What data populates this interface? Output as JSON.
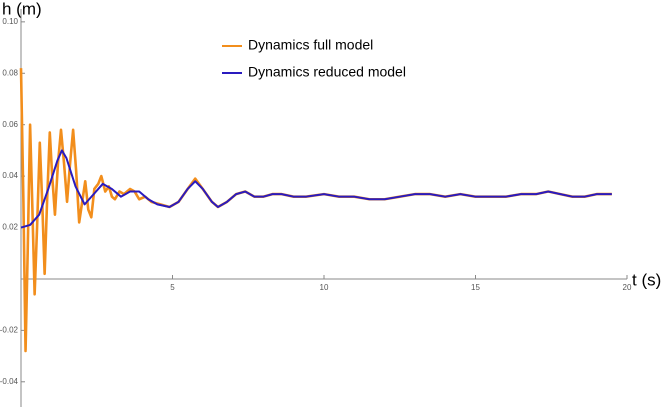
{
  "chart_data": {
    "type": "line",
    "x_label": "t (s)",
    "y_label": "h (m)",
    "xlim": [
      0,
      20
    ],
    "ylim": [
      -0.05,
      0.105
    ],
    "xticks": [
      5,
      10,
      15,
      20
    ],
    "yticks": [
      {
        "value": 0.1,
        "label": "0.10"
      },
      0.08,
      0.06,
      0.04,
      0.02,
      -0.02,
      -0.04
    ],
    "series": [
      {
        "name": "Dynamics full model",
        "color": "#f28e1c",
        "x": [
          0,
          0.08,
          0.15,
          0.22,
          0.3,
          0.37,
          0.45,
          0.53,
          0.62,
          0.7,
          0.78,
          0.86,
          0.95,
          1.03,
          1.12,
          1.22,
          1.32,
          1.42,
          1.52,
          1.62,
          1.72,
          1.82,
          1.92,
          2.02,
          2.12,
          2.22,
          2.32,
          2.42,
          2.55,
          2.65,
          2.78,
          2.9,
          3.0,
          3.1,
          3.25,
          3.4,
          3.6,
          3.75,
          3.9,
          4.1,
          4.3,
          4.6,
          4.9,
          5.2,
          5.5,
          5.75,
          6.0,
          6.3,
          6.5,
          6.8,
          7.1,
          7.4,
          7.7,
          8.0,
          8.3,
          8.6,
          9.0,
          9.4,
          10.0,
          10.5,
          11.0,
          11.5,
          12.0,
          12.5,
          13.0,
          13.5,
          14.0,
          14.5,
          15.0,
          15.5,
          16.0,
          16.5,
          17.0,
          17.4,
          17.8,
          18.2,
          18.6,
          19.0,
          19.5
        ],
        "values": [
          0.082,
          0.03,
          -0.028,
          0.01,
          0.06,
          0.03,
          -0.006,
          0.02,
          0.053,
          0.03,
          0.002,
          0.03,
          0.057,
          0.04,
          0.025,
          0.045,
          0.058,
          0.045,
          0.03,
          0.045,
          0.058,
          0.042,
          0.022,
          0.03,
          0.038,
          0.027,
          0.024,
          0.035,
          0.037,
          0.04,
          0.034,
          0.036,
          0.032,
          0.031,
          0.034,
          0.033,
          0.035,
          0.034,
          0.031,
          0.032,
          0.03,
          0.029,
          0.028,
          0.03,
          0.035,
          0.039,
          0.035,
          0.03,
          0.028,
          0.03,
          0.033,
          0.034,
          0.032,
          0.032,
          0.033,
          0.033,
          0.032,
          0.032,
          0.033,
          0.032,
          0.032,
          0.031,
          0.031,
          0.032,
          0.033,
          0.033,
          0.032,
          0.033,
          0.032,
          0.032,
          0.032,
          0.033,
          0.033,
          0.034,
          0.033,
          0.032,
          0.032,
          0.033,
          0.033
        ]
      },
      {
        "name": "Dynamics reduced model",
        "color": "#2a1bbf",
        "x": [
          0,
          0.3,
          0.6,
          0.9,
          1.2,
          1.35,
          1.5,
          1.8,
          2.1,
          2.4,
          2.7,
          3.0,
          3.3,
          3.6,
          3.9,
          4.2,
          4.5,
          4.9,
          5.2,
          5.5,
          5.75,
          6.0,
          6.3,
          6.5,
          6.8,
          7.1,
          7.4,
          7.7,
          8.0,
          8.3,
          8.6,
          9.0,
          9.4,
          10.0,
          10.5,
          11.0,
          11.5,
          12.0,
          12.5,
          13.0,
          13.5,
          14.0,
          14.5,
          15.0,
          15.5,
          16.0,
          16.5,
          17.0,
          17.4,
          17.8,
          18.2,
          18.6,
          19.0,
          19.5
        ],
        "values": [
          0.02,
          0.021,
          0.025,
          0.035,
          0.046,
          0.05,
          0.047,
          0.036,
          0.029,
          0.033,
          0.037,
          0.035,
          0.032,
          0.034,
          0.034,
          0.031,
          0.029,
          0.028,
          0.03,
          0.035,
          0.038,
          0.035,
          0.03,
          0.028,
          0.03,
          0.033,
          0.034,
          0.032,
          0.032,
          0.033,
          0.033,
          0.032,
          0.032,
          0.033,
          0.032,
          0.032,
          0.031,
          0.031,
          0.032,
          0.033,
          0.033,
          0.032,
          0.033,
          0.032,
          0.032,
          0.032,
          0.033,
          0.033,
          0.034,
          0.033,
          0.032,
          0.032,
          0.033,
          0.033
        ]
      }
    ]
  }
}
